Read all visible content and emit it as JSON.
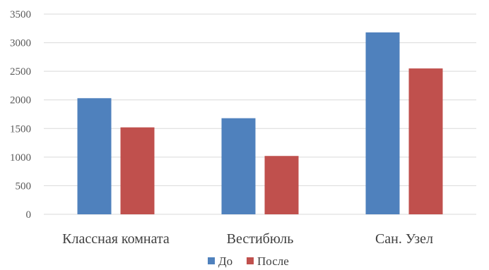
{
  "chart_data": {
    "type": "bar",
    "categories": [
      "Классная комната",
      "Вестибюль",
      "Сан. Узел"
    ],
    "series": [
      {
        "name": "До",
        "color": "#4f81bd",
        "values": [
          2030,
          1680,
          3180
        ]
      },
      {
        "name": "После",
        "color": "#c0504d",
        "values": [
          1520,
          1020,
          2550
        ]
      }
    ],
    "ylim": [
      0,
      3500
    ],
    "yticks": [
      "0",
      "500",
      "1000",
      "1500",
      "2000",
      "2500",
      "3000",
      "3500"
    ],
    "grid": true,
    "legend_position": "bottom"
  }
}
